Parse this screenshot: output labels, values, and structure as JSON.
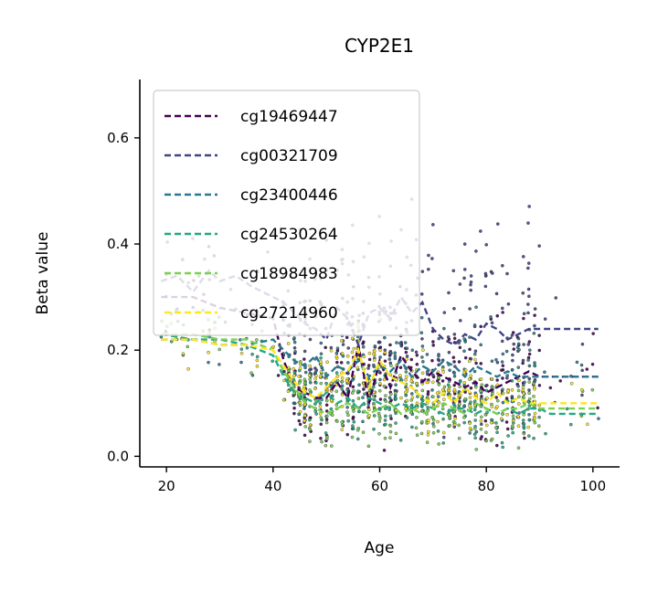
{
  "chart_data": {
    "type": "scatter",
    "title": "CYP2E1",
    "xlabel": "Age",
    "ylabel": "Beta value",
    "xlim": [
      15,
      105
    ],
    "ylim": [
      -0.02,
      0.71
    ],
    "xticks": [
      20,
      40,
      60,
      80,
      100
    ],
    "xtick_labels": [
      "20",
      "40",
      "60",
      "80",
      "100"
    ],
    "yticks": [
      0.0,
      0.2,
      0.4,
      0.6
    ],
    "ytick_labels": [
      "0.0",
      "0.2",
      "0.4",
      "0.6"
    ],
    "grid": false,
    "legend_position": "upper-left",
    "scatter_age_range": [
      19,
      101
    ],
    "series": [
      {
        "name": "cg19469447",
        "color": "#440154",
        "scatter_center": 0.16,
        "scatter_spread": 0.1,
        "trend": {
          "x": [
            19,
            25,
            30,
            35,
            40,
            42,
            44,
            46,
            48,
            50,
            52,
            54,
            56,
            58,
            60,
            62,
            64,
            66,
            68,
            70,
            72,
            74,
            76,
            78,
            80,
            82,
            84,
            86,
            88,
            90,
            92,
            95,
            101
          ],
          "y": [
            0.3,
            0.3,
            0.28,
            0.27,
            0.26,
            0.18,
            0.13,
            0.12,
            0.11,
            0.11,
            0.14,
            0.11,
            0.21,
            0.1,
            0.18,
            0.13,
            0.19,
            0.16,
            0.14,
            0.16,
            0.15,
            0.14,
            0.13,
            0.14,
            0.12,
            0.13,
            0.14,
            0.15,
            0.16,
            0.15,
            0.15,
            0.15,
            0.15
          ]
        }
      },
      {
        "name": "cg00321709",
        "color": "#414487",
        "scatter_center": 0.33,
        "scatter_spread": 0.17,
        "trend": {
          "x": [
            19,
            22,
            25,
            28,
            30,
            33,
            36,
            38,
            40,
            42,
            44,
            46,
            48,
            50,
            52,
            54,
            56,
            58,
            60,
            62,
            64,
            66,
            68,
            70,
            72,
            74,
            76,
            78,
            80,
            82,
            84,
            86,
            88,
            90,
            92,
            95,
            101
          ],
          "y": [
            0.33,
            0.34,
            0.31,
            0.35,
            0.33,
            0.34,
            0.32,
            0.31,
            0.3,
            0.29,
            0.27,
            0.25,
            0.24,
            0.22,
            0.28,
            0.26,
            0.21,
            0.27,
            0.28,
            0.26,
            0.3,
            0.27,
            0.29,
            0.24,
            0.22,
            0.21,
            0.23,
            0.22,
            0.25,
            0.24,
            0.22,
            0.23,
            0.24,
            0.24,
            0.24,
            0.24,
            0.24
          ]
        }
      },
      {
        "name": "cg23400446",
        "color": "#2a788e",
        "scatter_center": 0.17,
        "scatter_spread": 0.09,
        "trend": {
          "x": [
            19,
            25,
            30,
            35,
            40,
            42,
            44,
            46,
            48,
            50,
            52,
            54,
            56,
            58,
            60,
            62,
            64,
            66,
            68,
            70,
            72,
            74,
            76,
            78,
            80,
            82,
            84,
            86,
            88,
            90,
            92,
            95,
            101
          ],
          "y": [
            0.22,
            0.22,
            0.21,
            0.21,
            0.22,
            0.2,
            0.18,
            0.17,
            0.19,
            0.15,
            0.17,
            0.16,
            0.18,
            0.15,
            0.17,
            0.16,
            0.18,
            0.15,
            0.17,
            0.16,
            0.18,
            0.17,
            0.15,
            0.17,
            0.16,
            0.15,
            0.16,
            0.15,
            0.15,
            0.15,
            0.15,
            0.15,
            0.15
          ]
        }
      },
      {
        "name": "cg24530264",
        "color": "#22a884",
        "scatter_center": 0.1,
        "scatter_spread": 0.05,
        "trend": {
          "x": [
            19,
            25,
            30,
            35,
            40,
            42,
            44,
            46,
            48,
            50,
            52,
            54,
            56,
            58,
            60,
            62,
            64,
            66,
            68,
            70,
            72,
            74,
            76,
            78,
            80,
            82,
            84,
            86,
            88,
            90,
            92,
            95,
            101
          ],
          "y": [
            0.23,
            0.22,
            0.22,
            0.21,
            0.19,
            0.15,
            0.12,
            0.11,
            0.1,
            0.12,
            0.1,
            0.11,
            0.09,
            0.11,
            0.1,
            0.09,
            0.1,
            0.09,
            0.1,
            0.09,
            0.08,
            0.09,
            0.09,
            0.08,
            0.09,
            0.08,
            0.09,
            0.08,
            0.09,
            0.09,
            0.08,
            0.08,
            0.08
          ]
        }
      },
      {
        "name": "cg18984983",
        "color": "#7ad151",
        "scatter_center": 0.09,
        "scatter_spread": 0.06,
        "trend": {
          "x": [
            19,
            25,
            30,
            35,
            40,
            42,
            44,
            46,
            48,
            50,
            52,
            54,
            56,
            58,
            60,
            62,
            64,
            66,
            68,
            70,
            72,
            74,
            76,
            78,
            80,
            82,
            84,
            86,
            88,
            90,
            92,
            95,
            101
          ],
          "y": [
            0.23,
            0.23,
            0.22,
            0.22,
            0.2,
            0.16,
            0.13,
            0.1,
            0.09,
            0.08,
            0.09,
            0.1,
            0.09,
            0.08,
            0.09,
            0.1,
            0.08,
            0.09,
            0.08,
            0.09,
            0.1,
            0.09,
            0.08,
            0.1,
            0.09,
            0.08,
            0.09,
            0.09,
            0.1,
            0.09,
            0.09,
            0.09,
            0.09
          ]
        }
      },
      {
        "name": "cg27214960",
        "color": "#fde725",
        "scatter_center": 0.09,
        "scatter_spread": 0.06,
        "trend": {
          "x": [
            19,
            25,
            30,
            35,
            40,
            42,
            44,
            46,
            48,
            50,
            52,
            54,
            56,
            58,
            60,
            62,
            64,
            66,
            68,
            70,
            72,
            74,
            76,
            78,
            80,
            82,
            84,
            86,
            88,
            90,
            92,
            95,
            101
          ],
          "y": [
            0.22,
            0.22,
            0.21,
            0.21,
            0.2,
            0.17,
            0.14,
            0.12,
            0.11,
            0.13,
            0.15,
            0.16,
            0.2,
            0.13,
            0.18,
            0.15,
            0.14,
            0.13,
            0.11,
            0.1,
            0.12,
            0.1,
            0.13,
            0.11,
            0.1,
            0.12,
            0.1,
            0.11,
            0.1,
            0.1,
            0.1,
            0.1,
            0.1
          ]
        }
      }
    ]
  }
}
